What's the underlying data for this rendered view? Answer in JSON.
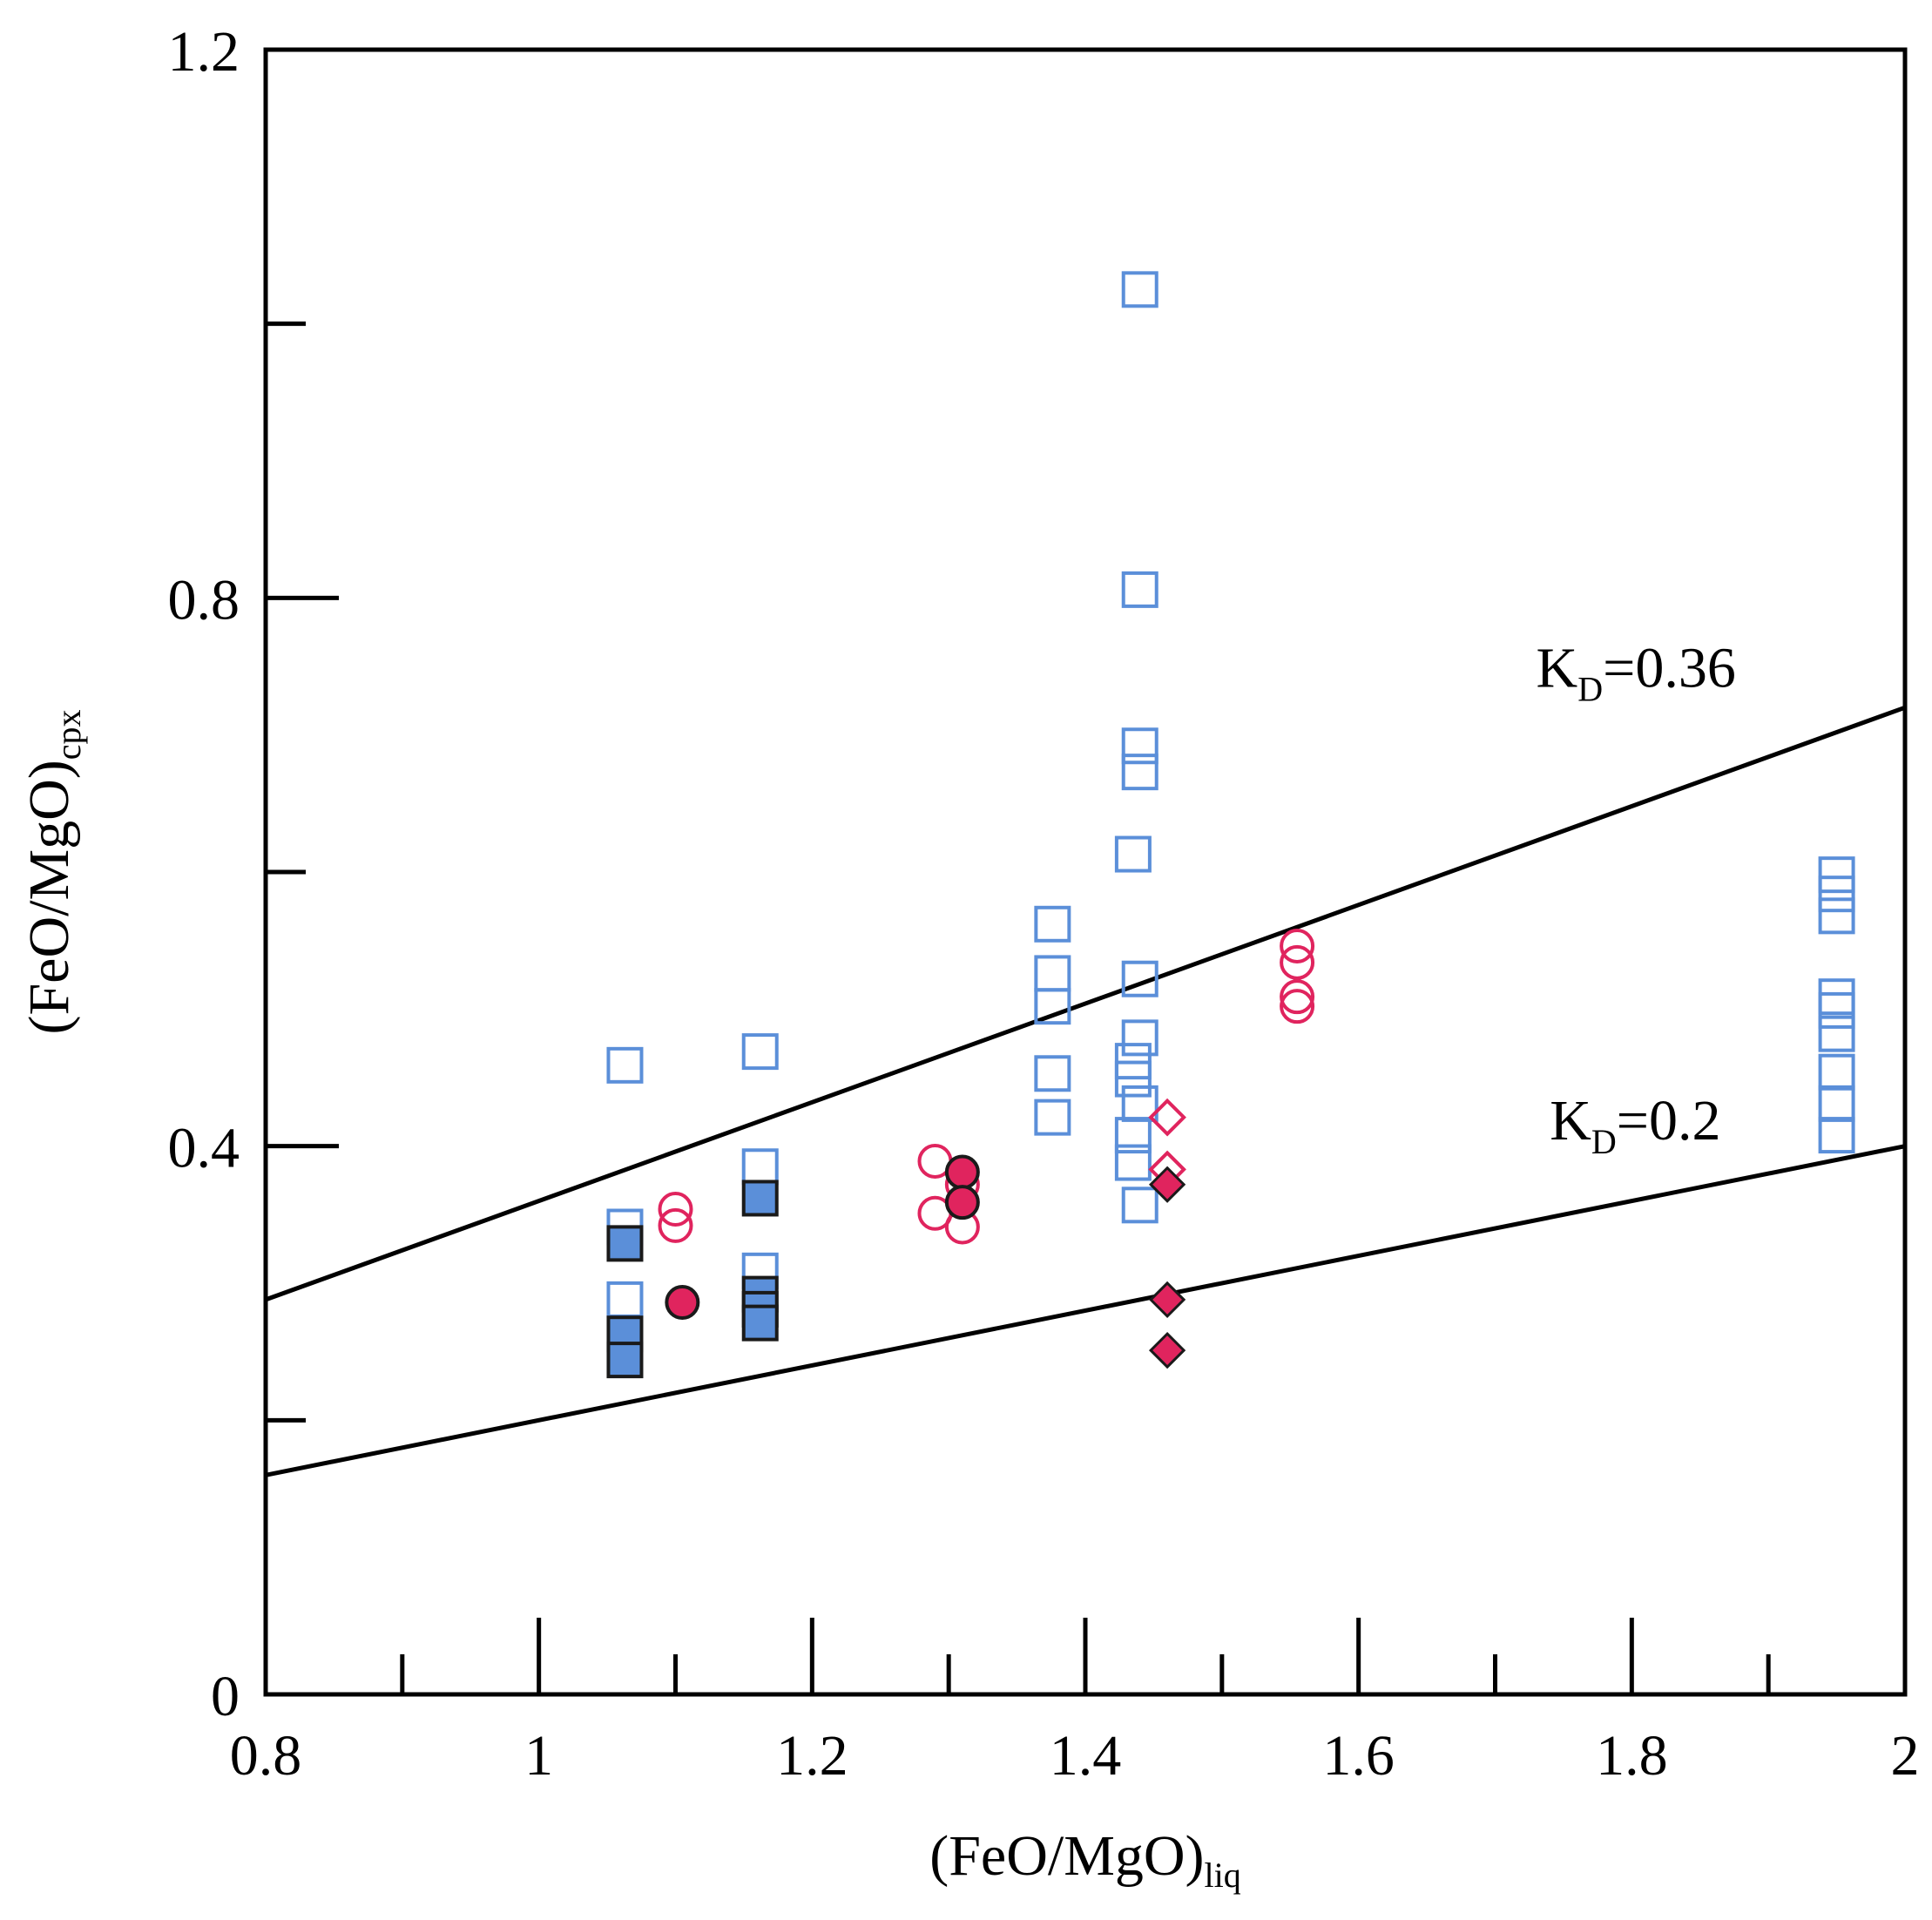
{
  "chart_data": {
    "type": "scatter",
    "title": "",
    "xlabel": {
      "main": "(FeO/MgO)",
      "sub": "liq"
    },
    "ylabel": {
      "main": "(FeO/MgO)",
      "sub": "cpx"
    },
    "xlim": [
      0.8,
      2.0
    ],
    "ylim": [
      0,
      1.2
    ],
    "x_tick_labels": [
      "0.8",
      "1",
      "1.2",
      "1.4",
      "1.6",
      "1.8",
      "2"
    ],
    "x_tick_values": [
      0.8,
      1.0,
      1.2,
      1.4,
      1.6,
      1.8,
      2.0
    ],
    "x_minor_ticks": [
      0.9,
      1.1,
      1.3,
      1.5,
      1.7,
      1.9
    ],
    "y_tick_labels": [
      "0",
      "0.4",
      "0.8",
      "1.2"
    ],
    "y_tick_values": [
      0,
      0.4,
      0.8,
      1.2
    ],
    "y_minor_ticks": [
      0.2,
      0.6,
      1.0
    ],
    "grid": false,
    "reference_lines": [
      {
        "name": "kd-036",
        "kd": 0.36,
        "label": "K",
        "label_sub": "D",
        "label_rest": "=0.36",
        "label_at": [
          1.73,
          0.735
        ]
      },
      {
        "name": "kd-02",
        "kd": 0.2,
        "label": "K",
        "label_sub": "D",
        "label_rest": "=0.2",
        "label_at": [
          1.74,
          0.405
        ]
      }
    ],
    "colors": {
      "open_square": "#5b8fd9",
      "filled_square": "#5b8fd9",
      "circle": "#e0245e",
      "diamond": "#e0245e"
    },
    "series": [
      {
        "name": "open-squares",
        "marker": "square",
        "filled": false,
        "points": [
          [
            1.063,
            0.459
          ],
          [
            1.063,
            0.341
          ],
          [
            1.063,
            0.288
          ],
          [
            1.162,
            0.469
          ],
          [
            1.162,
            0.385
          ],
          [
            1.162,
            0.309
          ],
          [
            1.376,
            0.562
          ],
          [
            1.376,
            0.526
          ],
          [
            1.376,
            0.502
          ],
          [
            1.376,
            0.453
          ],
          [
            1.376,
            0.421
          ],
          [
            1.44,
            1.025
          ],
          [
            1.44,
            0.806
          ],
          [
            1.44,
            0.692
          ],
          [
            1.44,
            0.673
          ],
          [
            1.435,
            0.613
          ],
          [
            1.44,
            0.522
          ],
          [
            1.44,
            0.479
          ],
          [
            1.435,
            0.462
          ],
          [
            1.435,
            0.449
          ],
          [
            1.44,
            0.431
          ],
          [
            1.435,
            0.408
          ],
          [
            1.435,
            0.388
          ],
          [
            1.44,
            0.357
          ],
          [
            1.95,
            0.598
          ],
          [
            1.95,
            0.584
          ],
          [
            1.95,
            0.568
          ],
          [
            1.95,
            0.509
          ],
          [
            1.95,
            0.499
          ],
          [
            1.95,
            0.482
          ],
          [
            1.95,
            0.454
          ],
          [
            1.95,
            0.431
          ],
          [
            1.95,
            0.408
          ]
        ]
      },
      {
        "name": "filled-squares",
        "marker": "square",
        "filled": true,
        "points": [
          [
            1.063,
            0.329
          ],
          [
            1.063,
            0.263
          ],
          [
            1.063,
            0.244
          ],
          [
            1.162,
            0.362
          ],
          [
            1.162,
            0.292
          ],
          [
            1.162,
            0.281
          ],
          [
            1.162,
            0.271
          ]
        ]
      },
      {
        "name": "open-circles",
        "marker": "circle",
        "filled": false,
        "points": [
          [
            1.1,
            0.354
          ],
          [
            1.1,
            0.342
          ],
          [
            1.29,
            0.389
          ],
          [
            1.29,
            0.351
          ],
          [
            1.31,
            0.372
          ],
          [
            1.31,
            0.341
          ],
          [
            1.555,
            0.546
          ],
          [
            1.555,
            0.534
          ],
          [
            1.555,
            0.509
          ],
          [
            1.555,
            0.502
          ]
        ]
      },
      {
        "name": "filled-circles",
        "marker": "circle",
        "filled": true,
        "points": [
          [
            1.105,
            0.286
          ],
          [
            1.31,
            0.381
          ],
          [
            1.31,
            0.359
          ]
        ]
      },
      {
        "name": "open-diamonds",
        "marker": "diamond",
        "filled": false,
        "points": [
          [
            1.46,
            0.421
          ],
          [
            1.46,
            0.383
          ]
        ]
      },
      {
        "name": "filled-diamonds",
        "marker": "diamond",
        "filled": true,
        "points": [
          [
            1.46,
            0.372
          ],
          [
            1.46,
            0.288
          ],
          [
            1.46,
            0.251
          ]
        ]
      }
    ]
  }
}
